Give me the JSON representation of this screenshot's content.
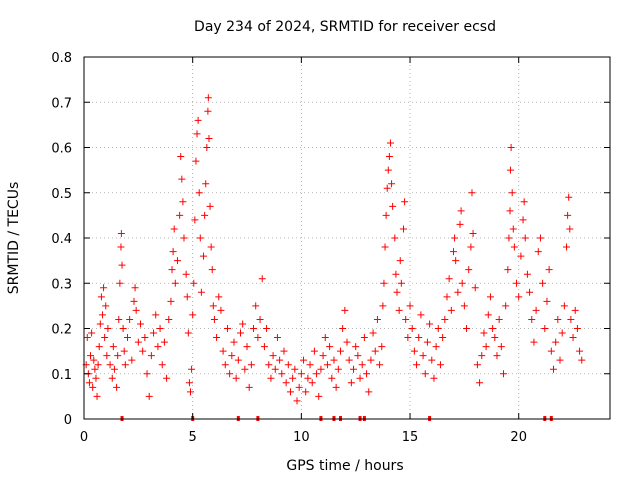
{
  "chart_data": {
    "type": "scatter",
    "title": "Day 234 of 2024, SRMTID for receiver ecsd",
    "xlabel": "GPS time / hours",
    "ylabel": "SRMTID / TECUs",
    "xlim": [
      0,
      24.2
    ],
    "ylim": [
      0,
      0.8
    ],
    "x_ticks": [
      0,
      5,
      10,
      15,
      20
    ],
    "y_ticks": [
      0,
      0.1,
      0.2,
      0.3,
      0.4,
      0.5,
      0.6,
      0.7,
      0.8
    ],
    "x_tick_labels": [
      "0",
      "5",
      "10",
      "15",
      "20"
    ],
    "y_tick_labels": [
      "0",
      "0.1",
      "0.2",
      "0.3",
      "0.4",
      "0.5",
      "0.6",
      "0.7",
      "0.8"
    ],
    "grid": true,
    "marker": "plus",
    "color": "#ff0000",
    "series": [
      {
        "name": "SRMTID",
        "points": [
          [
            0.1,
            0.12
          ],
          [
            0.15,
            0.18
          ],
          [
            0.2,
            0.1
          ],
          [
            0.25,
            0.08
          ],
          [
            0.3,
            0.14
          ],
          [
            0.35,
            0.19
          ],
          [
            0.4,
            0.07
          ],
          [
            0.45,
            0.13
          ],
          [
            0.5,
            0.11
          ],
          [
            0.55,
            0.09
          ],
          [
            0.6,
            0.05
          ],
          [
            0.65,
            0.12
          ],
          [
            0.7,
            0.16
          ],
          [
            0.75,
            0.21
          ],
          [
            0.8,
            0.27
          ],
          [
            0.85,
            0.23
          ],
          [
            0.9,
            0.29
          ],
          [
            0.95,
            0.18
          ],
          [
            1.0,
            0.25
          ],
          [
            1.05,
            0.14
          ],
          [
            1.1,
            0.2
          ],
          [
            1.2,
            0.12
          ],
          [
            1.3,
            0.09
          ],
          [
            1.35,
            0.16
          ],
          [
            1.4,
            0.11
          ],
          [
            1.5,
            0.07
          ],
          [
            1.55,
            0.14
          ],
          [
            1.6,
            0.22
          ],
          [
            1.65,
            0.3
          ],
          [
            1.7,
            0.38
          ],
          [
            1.72,
            0.41
          ],
          [
            1.75,
            0.34
          ],
          [
            1.8,
            0.2
          ],
          [
            1.85,
            0.15
          ],
          [
            1.9,
            0.12
          ],
          [
            2.0,
            0.18
          ],
          [
            2.1,
            0.22
          ],
          [
            2.2,
            0.13
          ],
          [
            2.3,
            0.26
          ],
          [
            2.35,
            0.29
          ],
          [
            2.4,
            0.24
          ],
          [
            2.5,
            0.17
          ],
          [
            2.6,
            0.21
          ],
          [
            2.7,
            0.15
          ],
          [
            2.8,
            0.18
          ],
          [
            2.9,
            0.1
          ],
          [
            3.0,
            0.05
          ],
          [
            3.1,
            0.14
          ],
          [
            3.2,
            0.19
          ],
          [
            3.3,
            0.23
          ],
          [
            3.4,
            0.16
          ],
          [
            3.5,
            0.2
          ],
          [
            3.6,
            0.12
          ],
          [
            3.7,
            0.17
          ],
          [
            3.8,
            0.09
          ],
          [
            3.9,
            0.22
          ],
          [
            4.0,
            0.26
          ],
          [
            4.05,
            0.33
          ],
          [
            4.1,
            0.37
          ],
          [
            4.15,
            0.42
          ],
          [
            4.2,
            0.3
          ],
          [
            4.3,
            0.35
          ],
          [
            4.4,
            0.45
          ],
          [
            4.45,
            0.58
          ],
          [
            4.5,
            0.53
          ],
          [
            4.55,
            0.48
          ],
          [
            4.6,
            0.4
          ],
          [
            4.7,
            0.32
          ],
          [
            4.75,
            0.27
          ],
          [
            4.8,
            0.19
          ],
          [
            4.85,
            0.08
          ],
          [
            4.9,
            0.06
          ],
          [
            4.95,
            0.11
          ],
          [
            5.0,
            0.23
          ],
          [
            5.05,
            0.3
          ],
          [
            5.1,
            0.44
          ],
          [
            5.15,
            0.57
          ],
          [
            5.2,
            0.63
          ],
          [
            5.25,
            0.66
          ],
          [
            5.3,
            0.5
          ],
          [
            5.35,
            0.4
          ],
          [
            5.4,
            0.28
          ],
          [
            5.5,
            0.36
          ],
          [
            5.55,
            0.45
          ],
          [
            5.6,
            0.52
          ],
          [
            5.65,
            0.6
          ],
          [
            5.7,
            0.68
          ],
          [
            5.72,
            0.71
          ],
          [
            5.75,
            0.62
          ],
          [
            5.8,
            0.47
          ],
          [
            5.85,
            0.38
          ],
          [
            5.9,
            0.33
          ],
          [
            5.95,
            0.25
          ],
          [
            6.0,
            0.22
          ],
          [
            6.1,
            0.18
          ],
          [
            6.2,
            0.27
          ],
          [
            6.3,
            0.24
          ],
          [
            6.4,
            0.15
          ],
          [
            6.5,
            0.12
          ],
          [
            6.6,
            0.2
          ],
          [
            6.7,
            0.1
          ],
          [
            6.8,
            0.14
          ],
          [
            6.9,
            0.17
          ],
          [
            7.0,
            0.09
          ],
          [
            7.1,
            0.13
          ],
          [
            7.2,
            0.19
          ],
          [
            7.3,
            0.21
          ],
          [
            7.4,
            0.11
          ],
          [
            7.5,
            0.16
          ],
          [
            7.6,
            0.07
          ],
          [
            7.7,
            0.12
          ],
          [
            7.8,
            0.2
          ],
          [
            7.9,
            0.25
          ],
          [
            8.0,
            0.18
          ],
          [
            8.1,
            0.22
          ],
          [
            8.2,
            0.31
          ],
          [
            8.3,
            0.16
          ],
          [
            8.4,
            0.2
          ],
          [
            8.5,
            0.12
          ],
          [
            8.6,
            0.09
          ],
          [
            8.7,
            0.14
          ],
          [
            8.8,
            0.11
          ],
          [
            8.9,
            0.18
          ],
          [
            9.0,
            0.13
          ],
          [
            9.1,
            0.1
          ],
          [
            9.2,
            0.15
          ],
          [
            9.3,
            0.08
          ],
          [
            9.4,
            0.12
          ],
          [
            9.5,
            0.06
          ],
          [
            9.6,
            0.09
          ],
          [
            9.7,
            0.11
          ],
          [
            9.8,
            0.04
          ],
          [
            9.9,
            0.07
          ],
          [
            10.0,
            0.1
          ],
          [
            10.1,
            0.13
          ],
          [
            10.2,
            0.06
          ],
          [
            10.3,
            0.09
          ],
          [
            10.4,
            0.12
          ],
          [
            10.5,
            0.08
          ],
          [
            10.6,
            0.15
          ],
          [
            10.7,
            0.1
          ],
          [
            10.8,
            0.05
          ],
          [
            10.9,
            0.11
          ],
          [
            11.0,
            0.14
          ],
          [
            11.1,
            0.18
          ],
          [
            11.2,
            0.12
          ],
          [
            11.3,
            0.16
          ],
          [
            11.4,
            0.09
          ],
          [
            11.5,
            0.13
          ],
          [
            11.6,
            0.07
          ],
          [
            11.7,
            0.11
          ],
          [
            11.8,
            0.15
          ],
          [
            11.9,
            0.2
          ],
          [
            12.0,
            0.24
          ],
          [
            12.1,
            0.17
          ],
          [
            12.2,
            0.13
          ],
          [
            12.3,
            0.08
          ],
          [
            12.4,
            0.11
          ],
          [
            12.5,
            0.16
          ],
          [
            12.6,
            0.14
          ],
          [
            12.7,
            0.09
          ],
          [
            12.8,
            0.12
          ],
          [
            12.9,
            0.18
          ],
          [
            13.0,
            0.1
          ],
          [
            13.1,
            0.06
          ],
          [
            13.2,
            0.13
          ],
          [
            13.3,
            0.19
          ],
          [
            13.4,
            0.15
          ],
          [
            13.5,
            0.22
          ],
          [
            13.6,
            0.12
          ],
          [
            13.7,
            0.16
          ],
          [
            13.75,
            0.25
          ],
          [
            13.8,
            0.3
          ],
          [
            13.85,
            0.38
          ],
          [
            13.9,
            0.45
          ],
          [
            13.95,
            0.51
          ],
          [
            14.0,
            0.55
          ],
          [
            14.05,
            0.58
          ],
          [
            14.1,
            0.61
          ],
          [
            14.15,
            0.52
          ],
          [
            14.2,
            0.47
          ],
          [
            14.3,
            0.4
          ],
          [
            14.35,
            0.32
          ],
          [
            14.4,
            0.28
          ],
          [
            14.5,
            0.24
          ],
          [
            14.55,
            0.35
          ],
          [
            14.6,
            0.3
          ],
          [
            14.7,
            0.42
          ],
          [
            14.75,
            0.48
          ],
          [
            14.8,
            0.22
          ],
          [
            14.9,
            0.18
          ],
          [
            15.0,
            0.25
          ],
          [
            15.1,
            0.2
          ],
          [
            15.2,
            0.15
          ],
          [
            15.3,
            0.12
          ],
          [
            15.4,
            0.18
          ],
          [
            15.5,
            0.23
          ],
          [
            15.6,
            0.14
          ],
          [
            15.7,
            0.1
          ],
          [
            15.8,
            0.17
          ],
          [
            15.9,
            0.21
          ],
          [
            16.0,
            0.13
          ],
          [
            16.1,
            0.09
          ],
          [
            16.2,
            0.16
          ],
          [
            16.3,
            0.2
          ],
          [
            16.4,
            0.12
          ],
          [
            16.5,
            0.18
          ],
          [
            16.6,
            0.22
          ],
          [
            16.7,
            0.27
          ],
          [
            16.8,
            0.31
          ],
          [
            16.9,
            0.24
          ],
          [
            17.0,
            0.37
          ],
          [
            17.05,
            0.4
          ],
          [
            17.1,
            0.35
          ],
          [
            17.2,
            0.28
          ],
          [
            17.3,
            0.43
          ],
          [
            17.35,
            0.46
          ],
          [
            17.4,
            0.3
          ],
          [
            17.5,
            0.25
          ],
          [
            17.6,
            0.2
          ],
          [
            17.7,
            0.33
          ],
          [
            17.8,
            0.38
          ],
          [
            17.85,
            0.5
          ],
          [
            17.9,
            0.41
          ],
          [
            18.0,
            0.29
          ],
          [
            18.1,
            0.12
          ],
          [
            18.2,
            0.08
          ],
          [
            18.3,
            0.14
          ],
          [
            18.4,
            0.19
          ],
          [
            18.5,
            0.16
          ],
          [
            18.6,
            0.23
          ],
          [
            18.7,
            0.27
          ],
          [
            18.8,
            0.2
          ],
          [
            18.9,
            0.18
          ],
          [
            19.0,
            0.14
          ],
          [
            19.1,
            0.22
          ],
          [
            19.2,
            0.16
          ],
          [
            19.3,
            0.1
          ],
          [
            19.4,
            0.25
          ],
          [
            19.5,
            0.33
          ],
          [
            19.55,
            0.4
          ],
          [
            19.6,
            0.46
          ],
          [
            19.62,
            0.55
          ],
          [
            19.65,
            0.6
          ],
          [
            19.7,
            0.5
          ],
          [
            19.75,
            0.42
          ],
          [
            19.8,
            0.38
          ],
          [
            19.9,
            0.3
          ],
          [
            20.0,
            0.27
          ],
          [
            20.1,
            0.36
          ],
          [
            20.2,
            0.44
          ],
          [
            20.25,
            0.48
          ],
          [
            20.3,
            0.4
          ],
          [
            20.4,
            0.32
          ],
          [
            20.5,
            0.28
          ],
          [
            20.6,
            0.22
          ],
          [
            20.7,
            0.17
          ],
          [
            20.8,
            0.24
          ],
          [
            20.9,
            0.37
          ],
          [
            21.0,
            0.4
          ],
          [
            21.1,
            0.3
          ],
          [
            21.2,
            0.2
          ],
          [
            21.3,
            0.26
          ],
          [
            21.4,
            0.33
          ],
          [
            21.5,
            0.15
          ],
          [
            21.6,
            0.11
          ],
          [
            21.7,
            0.17
          ],
          [
            21.8,
            0.22
          ],
          [
            21.9,
            0.13
          ],
          [
            22.0,
            0.19
          ],
          [
            22.1,
            0.25
          ],
          [
            22.2,
            0.38
          ],
          [
            22.25,
            0.45
          ],
          [
            22.3,
            0.49
          ],
          [
            22.35,
            0.42
          ],
          [
            22.4,
            0.22
          ],
          [
            22.5,
            0.18
          ],
          [
            22.6,
            0.24
          ],
          [
            22.7,
            0.2
          ],
          [
            22.8,
            0.15
          ],
          [
            22.9,
            0.13
          ]
        ]
      }
    ],
    "baseline_markers_x": [
      1.75,
      5.0,
      7.1,
      8.0,
      10.9,
      11.5,
      11.8,
      12.7,
      12.9,
      15.9,
      21.2,
      21.5
    ]
  }
}
